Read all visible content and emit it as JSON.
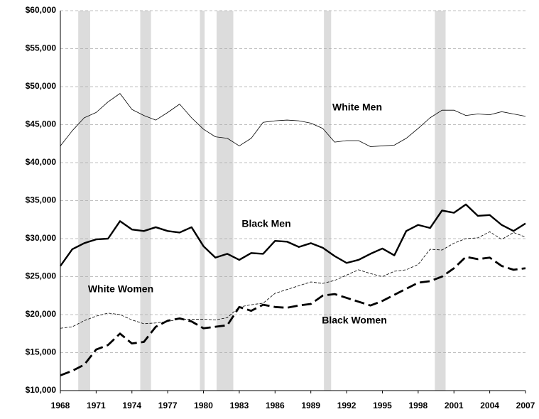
{
  "chart_data": {
    "type": "line",
    "x": [
      1968,
      1969,
      1970,
      1971,
      1972,
      1973,
      1974,
      1975,
      1976,
      1977,
      1978,
      1979,
      1980,
      1981,
      1982,
      1983,
      1984,
      1985,
      1986,
      1987,
      1988,
      1989,
      1990,
      1991,
      1992,
      1993,
      1994,
      1995,
      1996,
      1997,
      1998,
      1999,
      2000,
      2001,
      2002,
      2003,
      2004,
      2005,
      2006,
      2007
    ],
    "xlim": [
      1968,
      2007
    ],
    "xticks": [
      1968,
      1971,
      1974,
      1977,
      1980,
      1983,
      1986,
      1989,
      1992,
      1995,
      1998,
      2001,
      2004,
      2007
    ],
    "ylim": [
      10000,
      60000
    ],
    "yticks": [
      {
        "value": 10000,
        "label": "$10,000"
      },
      {
        "value": 15000,
        "label": "$15,000"
      },
      {
        "value": 20000,
        "label": "$20,000"
      },
      {
        "value": 25000,
        "label": "$25,000"
      },
      {
        "value": 30000,
        "label": "$30,000"
      },
      {
        "value": 35000,
        "label": "$35,000"
      },
      {
        "value": 40000,
        "label": "$40,000"
      },
      {
        "value": 45000,
        "label": "$45,000"
      },
      {
        "value": 50000,
        "label": "$50,000"
      },
      {
        "value": 55000,
        "label": "$55,000"
      },
      {
        "value": 60000,
        "label": "$60,000"
      }
    ],
    "grid": true,
    "shaded_spans": [
      [
        1969.5,
        1970.5
      ],
      [
        1974.7,
        1975.6
      ],
      [
        1979.7,
        1980.1
      ],
      [
        1981.1,
        1982.5
      ],
      [
        1990.1,
        1990.7
      ],
      [
        1999.4,
        2000.3
      ]
    ],
    "shade_color": "#dcdcdc",
    "series": [
      {
        "name": "White Men",
        "color": "#000000",
        "width": 0.8,
        "dash": false,
        "values": [
          42200,
          44200,
          45900,
          46600,
          48000,
          49100,
          47000,
          46200,
          45600,
          46600,
          47700,
          45900,
          44400,
          43400,
          43200,
          42200,
          43200,
          45300,
          45500,
          45600,
          45500,
          45200,
          44500,
          42700,
          42900,
          42900,
          42100,
          42200,
          42300,
          43200,
          44500,
          45900,
          46900,
          46900,
          46200,
          46400,
          46300,
          46700,
          46400,
          46100
        ]
      },
      {
        "name": "Black Men",
        "color": "#000000",
        "width": 2.4,
        "dash": false,
        "values": [
          26400,
          28600,
          29400,
          29900,
          30000,
          32300,
          31200,
          31000,
          31500,
          31000,
          30800,
          31500,
          29000,
          27500,
          28000,
          27200,
          28100,
          28000,
          29700,
          29600,
          28900,
          29400,
          28800,
          27700,
          26800,
          27200,
          28000,
          28700,
          27800,
          31000,
          31800,
          31400,
          33700,
          33400,
          34500,
          33000,
          33100,
          31800,
          31000,
          32000
        ]
      },
      {
        "name": "White Women",
        "color": "#000000",
        "width": 0.8,
        "dash": true,
        "values": [
          18200,
          18400,
          19200,
          19800,
          20200,
          20000,
          19300,
          18800,
          18900,
          19100,
          19400,
          19400,
          19400,
          19300,
          19600,
          21000,
          21300,
          21500,
          22800,
          23300,
          23800,
          24300,
          24100,
          24500,
          25200,
          25900,
          25400,
          25000,
          25700,
          25900,
          26600,
          28600,
          28500,
          29400,
          30000,
          30100,
          30900,
          29900,
          30800,
          30200
        ]
      },
      {
        "name": "Black Women",
        "color": "#000000",
        "width": 2.8,
        "dash": true,
        "values": [
          12000,
          12600,
          13400,
          15400,
          16000,
          17500,
          16200,
          16400,
          18400,
          19200,
          19500,
          19100,
          18200,
          18400,
          18600,
          21000,
          20500,
          21300,
          21000,
          20900,
          21200,
          21400,
          22500,
          22700,
          22200,
          21700,
          21200,
          21800,
          22600,
          23400,
          24200,
          24400,
          25000,
          26100,
          27600,
          27300,
          27500,
          26400,
          25900,
          26100
        ]
      }
    ]
  }
}
